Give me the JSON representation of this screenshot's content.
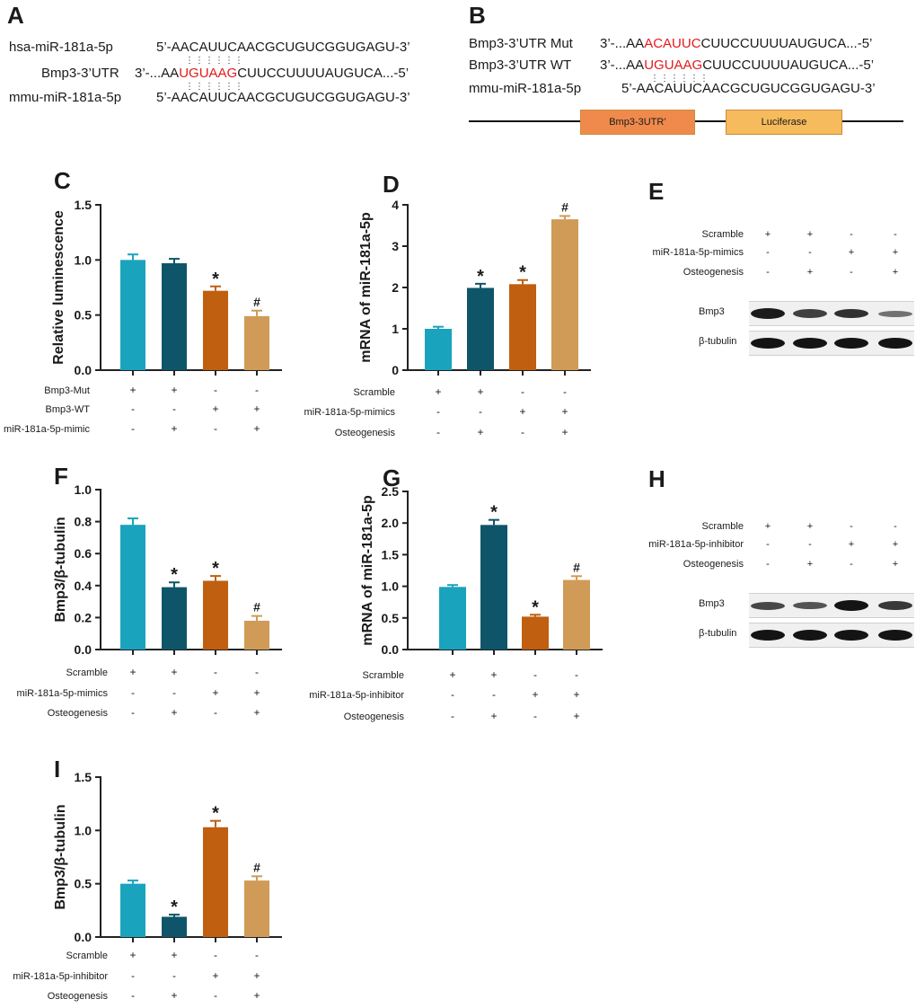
{
  "panels": {
    "A": {
      "letter": "A",
      "row1_label": "hsa-miR-181a-5p",
      "row1_seq": "5’-AACAUUCAACGCUGUCGGUGAGU-3’",
      "row2_label": "Bmp3-3’UTR",
      "row2_prefix": "3’-...AA",
      "row2_hl": "UGUAAG",
      "row2_suffix": "CUUCCUUUUAUGUCA...-5’",
      "row3_label": "mmu-miR-181a-5p",
      "row3_seq": "5’-AACAUUCAACGCUGUCGGUGAGU-3’",
      "pairing": "⋮⋮⋮⋮⋮⋮"
    },
    "B": {
      "letter": "B",
      "row1_label": "Bmp3-3’UTR Mut",
      "row1_prefix": "3’-...AA",
      "row1_hl": "ACAUUC",
      "row1_suffix": "CUUCCUUUUAUGUCA...-5’",
      "row2_label": "Bmp3-3’UTR WT",
      "row2_prefix": "3’-...AA",
      "row2_hl": "UGUAAG",
      "row2_suffix": "CUUCCUUUUAUGUCA...-5’",
      "row3_label": "mmu-miR-181a-5p",
      "row3_seq": "5’-AACAUUCAACGCUGUCGGUGAGU-3’",
      "pairing": "⋮⋮⋮⋮⋮⋮",
      "box1": "Bmp3-3UTR’",
      "box2": "Luciferase",
      "box1_color": "#ef8a4c",
      "box2_color": "#f6bb5c"
    },
    "E": {
      "letter": "E",
      "rows": [
        {
          "label": "Scramble",
          "signs": [
            "+",
            "+",
            "-",
            "-"
          ]
        },
        {
          "label": "miR-181a-5p-mimics",
          "signs": [
            "-",
            "-",
            "+",
            "+"
          ]
        },
        {
          "label": "Osteogenesis",
          "signs": [
            "-",
            "+",
            "-",
            "+"
          ]
        }
      ],
      "blot1": "Bmp3",
      "blot2": "β-tubulin",
      "bmp3_intensity": [
        0.95,
        0.7,
        0.8,
        0.35
      ],
      "tub_intensity": [
        1,
        1,
        1,
        1
      ]
    },
    "H": {
      "letter": "H",
      "rows": [
        {
          "label": "Scramble",
          "signs": [
            "+",
            "+",
            "-",
            "-"
          ]
        },
        {
          "label": "miR-181a-5p-inhibitor",
          "signs": [
            "-",
            "-",
            "+",
            "+"
          ]
        },
        {
          "label": "Osteogenesis",
          "signs": [
            "-",
            "+",
            "-",
            "+"
          ]
        }
      ],
      "blot1": "Bmp3",
      "blot2": "β-tubulin",
      "bmp3_intensity": [
        0.65,
        0.55,
        1.0,
        0.75
      ],
      "tub_intensity": [
        1,
        1,
        1,
        1
      ]
    }
  },
  "colors": {
    "c1": "#1aa3bd",
    "c2": "#0f5569",
    "c3": "#bf5f0f",
    "c4": "#cf9b57"
  },
  "chart_data": [
    {
      "id": "C",
      "type": "bar",
      "letter": "C",
      "ylabel": "Relative luminescence",
      "ylim": [
        0,
        1.5
      ],
      "yticks": [
        "0.0",
        "0.5",
        "1.0",
        "1.5"
      ],
      "tickvals": [
        0,
        0.5,
        1.0,
        1.5
      ],
      "values": [
        1.0,
        0.97,
        0.72,
        0.49
      ],
      "errors": [
        0.05,
        0.04,
        0.04,
        0.05
      ],
      "marks": [
        "",
        "",
        "*",
        "#"
      ],
      "rows": [
        {
          "label": "Bmp3-Mut",
          "signs": [
            "+",
            "+",
            "-",
            "-"
          ]
        },
        {
          "label": "Bmp3-WT",
          "signs": [
            "-",
            "-",
            "+",
            "+"
          ]
        },
        {
          "label": "miR-181a-5p-mimic",
          "signs": [
            "-",
            "+",
            "-",
            "+"
          ]
        }
      ]
    },
    {
      "id": "D",
      "type": "bar",
      "letter": "D",
      "ylabel": "mRNA of miR-181a-5p",
      "ylim": [
        0,
        4
      ],
      "yticks": [
        "0",
        "1",
        "2",
        "3",
        "4"
      ],
      "tickvals": [
        0,
        1,
        2,
        3,
        4
      ],
      "values": [
        1.0,
        1.99,
        2.08,
        3.65
      ],
      "errors": [
        0.05,
        0.1,
        0.1,
        0.08
      ],
      "marks": [
        "",
        "*",
        "*",
        "#"
      ],
      "rows": [
        {
          "label": "Scramble",
          "signs": [
            "+",
            "+",
            "-",
            "-"
          ]
        },
        {
          "label": "miR-181a-5p-mimics",
          "signs": [
            "-",
            "-",
            "+",
            "+"
          ]
        },
        {
          "label": "Osteogenesis",
          "signs": [
            "-",
            "+",
            "-",
            "+"
          ]
        }
      ]
    },
    {
      "id": "F",
      "type": "bar",
      "letter": "F",
      "ylabel": "Bmp3/β-tubulin",
      "ylim": [
        0,
        1.0
      ],
      "yticks": [
        "0.0",
        "0.2",
        "0.4",
        "0.6",
        "0.8",
        "1.0"
      ],
      "tickvals": [
        0,
        0.2,
        0.4,
        0.6,
        0.8,
        1.0
      ],
      "values": [
        0.78,
        0.39,
        0.43,
        0.18
      ],
      "errors": [
        0.04,
        0.03,
        0.03,
        0.03
      ],
      "marks": [
        "",
        "*",
        "*",
        "#"
      ],
      "rows": [
        {
          "label": "Scramble",
          "signs": [
            "+",
            "+",
            "-",
            "-"
          ]
        },
        {
          "label": "miR-181a-5p-mimics",
          "signs": [
            "-",
            "-",
            "+",
            "+"
          ]
        },
        {
          "label": "Osteogenesis",
          "signs": [
            "-",
            "+",
            "-",
            "+"
          ]
        }
      ]
    },
    {
      "id": "G",
      "type": "bar",
      "letter": "G",
      "ylabel": "mRNA of miR-181a-5p",
      "ylim": [
        0,
        2.5
      ],
      "yticks": [
        "0.0",
        "0.5",
        "1.0",
        "1.5",
        "2.0",
        "2.5"
      ],
      "tickvals": [
        0,
        0.5,
        1.0,
        1.5,
        2.0,
        2.5
      ],
      "values": [
        0.99,
        1.97,
        0.52,
        1.1
      ],
      "errors": [
        0.03,
        0.08,
        0.03,
        0.06
      ],
      "marks": [
        "",
        "*",
        "*",
        "#"
      ],
      "rows": [
        {
          "label": "Scramble",
          "signs": [
            "+",
            "+",
            "-",
            "-"
          ]
        },
        {
          "label": "miR-181a-5p-inhibitor",
          "signs": [
            "-",
            "-",
            "+",
            "+"
          ]
        },
        {
          "label": "Osteogenesis",
          "signs": [
            "-",
            "+",
            "-",
            "+"
          ]
        }
      ]
    },
    {
      "id": "I",
      "type": "bar",
      "letter": "I",
      "ylabel": "Bmp3/β-tubulin",
      "ylim": [
        0,
        1.5
      ],
      "yticks": [
        "0.0",
        "0.5",
        "1.0",
        "1.5"
      ],
      "tickvals": [
        0,
        0.5,
        1.0,
        1.5
      ],
      "values": [
        0.5,
        0.19,
        1.03,
        0.53
      ],
      "errors": [
        0.03,
        0.02,
        0.06,
        0.04
      ],
      "marks": [
        "",
        "*",
        "*",
        "#"
      ],
      "rows": [
        {
          "label": "Scramble",
          "signs": [
            "+",
            "+",
            "-",
            "-"
          ]
        },
        {
          "label": "miR-181a-5p-inhibitor",
          "signs": [
            "-",
            "-",
            "+",
            "+"
          ]
        },
        {
          "label": "Osteogenesis",
          "signs": [
            "-",
            "+",
            "-",
            "+"
          ]
        }
      ]
    }
  ]
}
